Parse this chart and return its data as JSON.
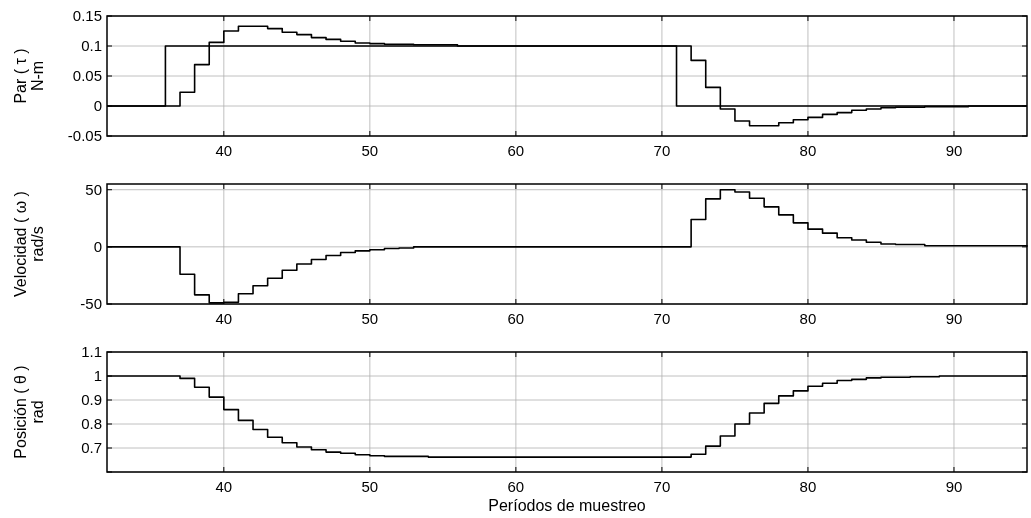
{
  "chart_data": [
    {
      "type": "step",
      "ylabel": "Par ( τ )\nN-m",
      "x": [
        32,
        33,
        34,
        35,
        36,
        37,
        38,
        39,
        40,
        41,
        42,
        43,
        44,
        45,
        46,
        47,
        48,
        49,
        50,
        51,
        52,
        53,
        54,
        55,
        56,
        57,
        58,
        59,
        60,
        61,
        62,
        63,
        64,
        65,
        66,
        67,
        68,
        69,
        70,
        71,
        72,
        73,
        74,
        75,
        76,
        77,
        78,
        79,
        80,
        81,
        82,
        83,
        84,
        85,
        86,
        87,
        88,
        89,
        90,
        91,
        92,
        93,
        94,
        95
      ],
      "xlim": [
        32,
        95
      ],
      "xticks": [
        40,
        50,
        60,
        70,
        80,
        90
      ],
      "ylim": [
        -0.05,
        0.15
      ],
      "yticks": [
        -0.05,
        0,
        0.05,
        0.1,
        0.15
      ],
      "grid": true,
      "line_style": "solid",
      "series": [
        {
          "color": "#000000",
          "values": [
            0,
            0,
            0,
            0,
            0.1,
            0.1,
            0.1,
            0.1,
            0.1,
            0.1,
            0.1,
            0.1,
            0.1,
            0.1,
            0.1,
            0.1,
            0.1,
            0.1,
            0.1,
            0.1,
            0.1,
            0.1,
            0.1,
            0.1,
            0.1,
            0.1,
            0.1,
            0.1,
            0.1,
            0.1,
            0.1,
            0.1,
            0.1,
            0.1,
            0.1,
            0.1,
            0.1,
            0.1,
            0.1,
            0,
            0,
            0,
            0,
            0,
            0,
            0,
            0,
            0,
            0,
            0,
            0,
            0,
            0,
            0,
            0,
            0,
            0,
            0,
            0,
            0,
            0,
            0,
            0,
            0
          ]
        },
        {
          "color": "#000000",
          "values": [
            0,
            0,
            0,
            0,
            0,
            0.023,
            0.069,
            0.106,
            0.125,
            0.133,
            0.133,
            0.129,
            0.123,
            0.119,
            0.114,
            0.111,
            0.108,
            0.105,
            0.104,
            0.103,
            0.103,
            0.102,
            0.102,
            0.102,
            0.1,
            0.1,
            0.1,
            0.1,
            0.1,
            0.1,
            0.1,
            0.1,
            0.1,
            0.1,
            0.1,
            0.1,
            0.1,
            0.1,
            0.1,
            0.1,
            0.076,
            0.031,
            -0.005,
            -0.025,
            -0.033,
            -0.033,
            -0.028,
            -0.023,
            -0.019,
            -0.014,
            -0.011,
            -0.007,
            -0.005,
            -0.003,
            -0.002,
            -0.002,
            -0.001,
            -0.001,
            -0.001,
            0,
            0,
            0,
            0,
            0
          ]
        }
      ]
    },
    {
      "type": "step",
      "ylabel": "Velocidad ( ω )\nrad/s",
      "x": [
        32,
        33,
        34,
        35,
        36,
        37,
        38,
        39,
        40,
        41,
        42,
        43,
        44,
        45,
        46,
        47,
        48,
        49,
        50,
        51,
        52,
        53,
        54,
        55,
        56,
        57,
        58,
        59,
        60,
        61,
        62,
        63,
        64,
        65,
        66,
        67,
        68,
        69,
        70,
        71,
        72,
        73,
        74,
        75,
        76,
        77,
        78,
        79,
        80,
        81,
        82,
        83,
        84,
        85,
        86,
        87,
        88,
        89,
        90,
        91,
        92,
        93,
        94,
        95
      ],
      "xlim": [
        32,
        95
      ],
      "xticks": [
        40,
        50,
        60,
        70,
        80,
        90
      ],
      "ylim": [
        -50,
        55
      ],
      "yticks": [
        -50,
        0,
        50
      ],
      "grid": true,
      "line_style": "solid",
      "series": [
        {
          "color": "#000000",
          "values": [
            0,
            0,
            0,
            0,
            0,
            -24,
            -42,
            -49,
            -48.5,
            -41,
            -34,
            -27.5,
            -20.5,
            -15,
            -11,
            -7.5,
            -5,
            -3.5,
            -2.5,
            -1.5,
            -1,
            0,
            0,
            0,
            0,
            0,
            0,
            0,
            0,
            0,
            0,
            0,
            0,
            0,
            0,
            0,
            0,
            0,
            0,
            0,
            24,
            42,
            50,
            48,
            42.5,
            35,
            28,
            21,
            15.5,
            12,
            8,
            6,
            4,
            2.5,
            2,
            2,
            1,
            1,
            1,
            1,
            1,
            1,
            1,
            0
          ]
        }
      ]
    },
    {
      "type": "step",
      "ylabel": "Posición ( θ )\nrad",
      "xlabel": "Períodos de muestreo",
      "x": [
        32,
        33,
        34,
        35,
        36,
        37,
        38,
        39,
        40,
        41,
        42,
        43,
        44,
        45,
        46,
        47,
        48,
        49,
        50,
        51,
        52,
        53,
        54,
        55,
        56,
        57,
        58,
        59,
        60,
        61,
        62,
        63,
        64,
        65,
        66,
        67,
        68,
        69,
        70,
        71,
        72,
        73,
        74,
        75,
        76,
        77,
        78,
        79,
        80,
        81,
        82,
        83,
        84,
        85,
        86,
        87,
        88,
        89,
        90,
        91,
        92,
        93,
        94,
        95
      ],
      "xlim": [
        32,
        95
      ],
      "xticks": [
        40,
        50,
        60,
        70,
        80,
        90
      ],
      "ylim": [
        0.6,
        1.1
      ],
      "yticks": [
        {
          "value": 0.6,
          "label": null
        },
        0.7,
        0.8,
        0.9,
        1,
        1.1
      ],
      "grid": true,
      "line_style": "solid",
      "series": [
        {
          "color": "#000000",
          "values": [
            1,
            1,
            1,
            1,
            1,
            0.99,
            0.953,
            0.912,
            0.86,
            0.815,
            0.777,
            0.745,
            0.722,
            0.704,
            0.693,
            0.683,
            0.678,
            0.672,
            0.668,
            0.665,
            0.665,
            0.665,
            0.662,
            0.662,
            0.662,
            0.662,
            0.662,
            0.662,
            0.662,
            0.662,
            0.662,
            0.662,
            0.662,
            0.662,
            0.662,
            0.662,
            0.662,
            0.662,
            0.662,
            0.662,
            0.674,
            0.708,
            0.75,
            0.8,
            0.846,
            0.886,
            0.917,
            0.938,
            0.957,
            0.97,
            0.981,
            0.986,
            0.992,
            0.995,
            0.995,
            0.997,
            0.997,
            1,
            1,
            1,
            1,
            1,
            1,
            1
          ]
        }
      ]
    }
  ]
}
